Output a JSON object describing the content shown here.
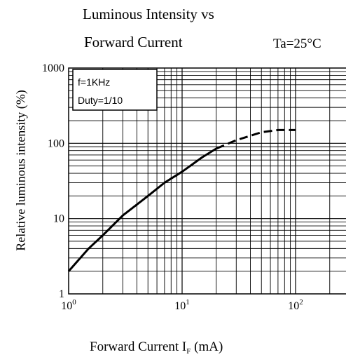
{
  "chart_data": {
    "type": "line",
    "title_line1": "Luminous Intensity vs",
    "title_line2": "Forward Current",
    "condition": "Ta=25°C",
    "xlabel_main": "Forward Current   I",
    "xlabel_sub": "F",
    "xlabel_unit": " (mA)",
    "ylabel": "Relative luminous intensity (%)",
    "xscale": "log",
    "yscale": "log",
    "xlim": [
      1,
      400
    ],
    "ylim": [
      1,
      1000
    ],
    "grid": true,
    "x_tick_labels": [
      {
        "value": 1,
        "base": "10",
        "exp": "0"
      },
      {
        "value": 10,
        "base": "10",
        "exp": "1"
      },
      {
        "value": 100,
        "base": "10",
        "exp": "2"
      }
    ],
    "y_tick_labels": [
      {
        "value": 1,
        "label": "1"
      },
      {
        "value": 10,
        "label": "10"
      },
      {
        "value": 100,
        "label": "100"
      },
      {
        "value": 1000,
        "label": "1000"
      }
    ],
    "inset_box": {
      "line1": "f=1KHz",
      "line2": "Duty=1/10"
    },
    "series": [
      {
        "style": "solid",
        "x": [
          1,
          1.5,
          2,
          3,
          5,
          7,
          10,
          15,
          20
        ],
        "y": [
          2,
          4,
          6,
          11,
          20,
          30,
          42,
          65,
          85
        ]
      },
      {
        "style": "dashed",
        "x": [
          20,
          30,
          50,
          70,
          100
        ],
        "y": [
          85,
          110,
          140,
          150,
          150
        ]
      }
    ]
  }
}
